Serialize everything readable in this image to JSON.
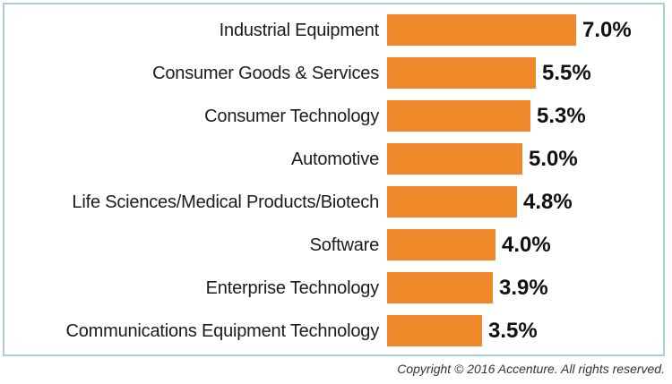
{
  "chart_data": {
    "type": "bar",
    "orientation": "horizontal",
    "title": "",
    "xlabel": "",
    "ylabel": "",
    "categories": [
      "Industrial Equipment",
      "Consumer Goods & Services",
      "Consumer Technology",
      "Automotive",
      "Life Sciences/Medical Products/Biotech",
      "Software",
      "Enterprise Technology",
      "Communications Equipment Technology"
    ],
    "values": [
      7.0,
      5.5,
      5.3,
      5.0,
      4.8,
      4.0,
      3.9,
      3.5
    ],
    "value_labels": [
      "7.0%",
      "5.5%",
      "5.3%",
      "5.0%",
      "4.8%",
      "4.0%",
      "3.9%",
      "3.5%"
    ],
    "xlim": [
      0,
      7.0
    ],
    "grid": false,
    "legend": false,
    "bar_color": "#EF8829",
    "label_color": "#1b1b1b",
    "value_color": "#101010"
  },
  "frame": {
    "border_color": "#A5CEDF"
  },
  "footer": {
    "copyright": "Copyright © 2016 Accenture. All rights reserved."
  }
}
